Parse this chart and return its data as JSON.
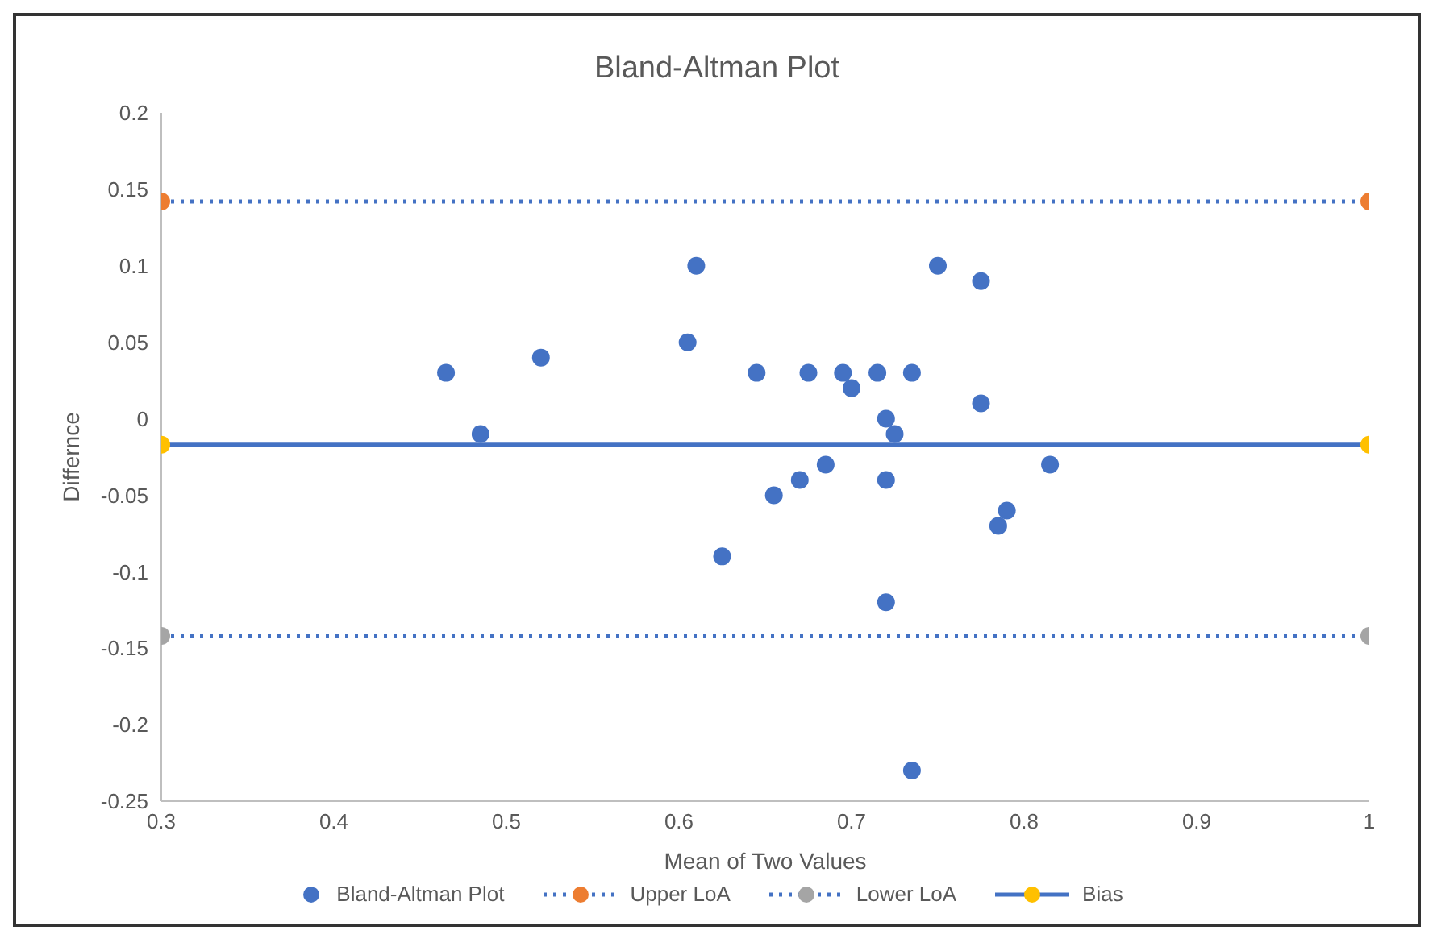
{
  "chart_data": {
    "type": "scatter",
    "title": "Bland-Altman Plot",
    "xlabel": "Mean of Two Values",
    "ylabel": "Differnce",
    "xlim": [
      0.3,
      1
    ],
    "xticks": [
      0.3,
      0.4,
      0.5,
      0.6,
      0.7,
      0.8,
      0.9,
      1
    ],
    "ylim": [
      -0.25,
      0.2
    ],
    "yticks": [
      -0.25,
      -0.2,
      -0.15,
      -0.1,
      -0.05,
      0,
      0.05,
      0.1,
      0.15,
      0.2
    ],
    "legend": "bottom",
    "marker": "circle",
    "series": [
      {
        "name": "Bland-Altman Plot",
        "type": "scatter",
        "color": "#4472c4",
        "x": [
          0.465,
          0.485,
          0.52,
          0.605,
          0.61,
          0.625,
          0.645,
          0.655,
          0.67,
          0.675,
          0.685,
          0.695,
          0.7,
          0.715,
          0.72,
          0.72,
          0.72,
          0.725,
          0.735,
          0.735,
          0.75,
          0.775,
          0.775,
          0.785,
          0.79,
          0.815
        ],
        "values": [
          0.03,
          -0.01,
          0.04,
          0.05,
          0.1,
          -0.09,
          0.03,
          -0.05,
          -0.04,
          0.03,
          -0.03,
          0.03,
          0.02,
          0.03,
          0,
          -0.04,
          -0.12,
          -0.01,
          0.03,
          -0.23,
          0.1,
          0.09,
          0.01,
          -0.07,
          -0.06,
          -0.03
        ]
      },
      {
        "name": "Upper LoA",
        "type": "line",
        "line_style": "dotted",
        "color": "#4472c4",
        "colors": [
          "#ed7d31",
          "#ed7d31"
        ],
        "x": [
          0.3,
          1
        ],
        "values": [
          0.142,
          0.142
        ]
      },
      {
        "name": "Lower LoA",
        "type": "line",
        "line_style": "dotted",
        "color": "#4472c4",
        "colors": [
          "#a5a5a5",
          "#a5a5a5"
        ],
        "x": [
          0.3,
          1
        ],
        "values": [
          -0.142,
          -0.142
        ]
      },
      {
        "name": "Bias",
        "type": "line",
        "line_style": "solid",
        "color": "#4472c4",
        "colors": [
          "#ffc000",
          "#ffc000"
        ],
        "x": [
          0.3,
          1
        ],
        "values": [
          -0.017,
          -0.017
        ]
      }
    ]
  }
}
